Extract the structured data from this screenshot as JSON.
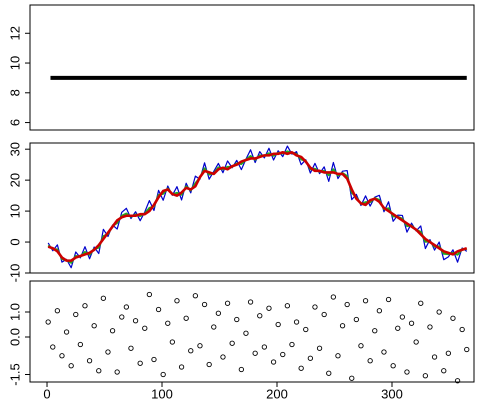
{
  "chart_data": [
    {
      "type": "line",
      "xlim": [
        -14.8,
        371.3
      ],
      "ylim": [
        5.5,
        13.9
      ],
      "yticks": [
        6,
        8,
        10,
        12
      ],
      "x": [
        3,
        365
      ],
      "series": [
        {
          "color": "#000000",
          "values": [
            9,
            9
          ]
        }
      ]
    },
    {
      "type": "line",
      "xlim": [
        -14.8,
        371.3
      ],
      "ylim": [
        -10,
        32
      ],
      "yticks": [
        -10,
        0,
        10,
        20,
        30
      ],
      "x": [
        1,
        5,
        9,
        13,
        17,
        21,
        25,
        29,
        33,
        37,
        41,
        45,
        49,
        53,
        57,
        61,
        65,
        69,
        73,
        77,
        81,
        85,
        89,
        93,
        97,
        101,
        105,
        109,
        113,
        117,
        121,
        125,
        129,
        133,
        137,
        141,
        145,
        149,
        153,
        157,
        161,
        165,
        169,
        173,
        177,
        181,
        185,
        189,
        193,
        197,
        201,
        205,
        209,
        213,
        217,
        221,
        225,
        229,
        233,
        237,
        241,
        245,
        249,
        253,
        257,
        261,
        265,
        269,
        273,
        277,
        281,
        285,
        289,
        293,
        297,
        301,
        305,
        309,
        313,
        317,
        321,
        325,
        329,
        333,
        337,
        341,
        345,
        349,
        353,
        357,
        361,
        365
      ],
      "series": [
        {
          "color": "#0000cc",
          "values": [
            -0.3,
            -2.8,
            -0.9,
            -6.5,
            -5.6,
            -8.3,
            -3.2,
            -5.1,
            -1.5,
            -5.4,
            -1.6,
            -3.7,
            4.1,
            1.8,
            5.5,
            4.2,
            9.6,
            10.9,
            7.6,
            9.8,
            6.9,
            9.7,
            13.4,
            10.2,
            16.7,
            13.5,
            18.1,
            15.1,
            17.9,
            13.6,
            19,
            15.9,
            21.3,
            20.3,
            25.6,
            20.3,
            22.8,
            25.4,
            22.4,
            26.2,
            24,
            26.4,
            23.4,
            26.8,
            29.8,
            25.7,
            29.2,
            27.2,
            30.3,
            26.5,
            29.5,
            27.6,
            31,
            28.4,
            29.2,
            25,
            26.6,
            22.3,
            25.4,
            22.1,
            24.3,
            19.6,
            25.7,
            20.5,
            22.9,
            23.1,
            13.7,
            15.4,
            11.8,
            14.9,
            11.6,
            14.5,
            15.1,
            9.8,
            13,
            6.7,
            8.7,
            8.6,
            3.2,
            6.1,
            3.6,
            5.2,
            -2.1,
            0.8,
            -2.6,
            0,
            -5.7,
            -4.8,
            -2.5,
            -6.5,
            -1.9,
            -3
          ]
        },
        {
          "color": "#22aa22",
          "values": [
            -1.1,
            -2.2,
            -2.4,
            -5.5,
            -5.9,
            -6.7,
            -4.5,
            -4.7,
            -3.2,
            -4.1,
            -2.2,
            -1.8,
            1.9,
            2.6,
            5.2,
            6.2,
            8.5,
            9.2,
            8.2,
            8.9,
            8.4,
            9.2,
            11,
            11.5,
            15.2,
            15.6,
            17.3,
            15.4,
            15.9,
            15.3,
            18,
            16.7,
            19,
            20.8,
            23.8,
            21.8,
            22.2,
            24.1,
            23.5,
            24.3,
            24.3,
            25.4,
            25.2,
            26.6,
            27.8,
            26.6,
            28,
            27.8,
            28.7,
            27.9,
            28.8,
            28.6,
            29.3,
            28.8,
            28.4,
            26.7,
            26.2,
            23.5,
            23.7,
            22.7,
            23,
            21.6,
            23.5,
            21.5,
            22.3,
            21.3,
            16,
            14.4,
            12.3,
            12.9,
            12.9,
            14.2,
            13.6,
            10.6,
            10.9,
            8.3,
            8.2,
            7.5,
            5.2,
            5.3,
            3.9,
            3.3,
            0.1,
            0.2,
            -1.5,
            -1.4,
            -3.8,
            -3.9,
            -3.5,
            -4.1,
            -2.3,
            -2.3
          ]
        },
        {
          "color": "#cc0000",
          "values": [
            -1.5,
            -2,
            -3,
            -5,
            -6,
            -6,
            -5,
            -4.5,
            -4,
            -3.5,
            -2.5,
            -1,
            1,
            3,
            5,
            7,
            8,
            8.5,
            8.5,
            8.5,
            9,
            9,
            10,
            12,
            14.5,
            16.5,
            17,
            15.5,
            15,
            16,
            17.5,
            17,
            18,
            21,
            23,
            22.5,
            22,
            23.5,
            24,
            23.5,
            24.5,
            25,
            26,
            26.5,
            27,
            27,
            27.5,
            28,
            28,
            28.5,
            28.5,
            29,
            28.5,
            29,
            28,
            27.5,
            26,
            24,
            23,
            23,
            22.5,
            22.5,
            22.5,
            22,
            22,
            20.5,
            17,
            14,
            12.5,
            12,
            13.5,
            14,
            13,
            11,
            10,
            9,
            8,
            7,
            6,
            5,
            4,
            2.5,
            1,
            0,
            -1,
            -2,
            -3,
            -3.5,
            -4,
            -3,
            -2.5,
            -2
          ]
        }
      ]
    },
    {
      "type": "scatter",
      "xlim": [
        -14.8,
        371.3
      ],
      "ylim": [
        -1.8,
        2.24
      ],
      "yticks": [
        -1.5,
        {
          "value": 0,
          "label": "0.0"
        },
        {
          "value": 1,
          "label": "1.0"
        }
      ],
      "xticks": [
        0,
        100,
        200,
        300
      ],
      "x": [
        1,
        5,
        9,
        13,
        17,
        21,
        25,
        29,
        33,
        37,
        41,
        45,
        49,
        53,
        57,
        61,
        65,
        69,
        73,
        77,
        81,
        85,
        89,
        93,
        97,
        101,
        105,
        109,
        113,
        117,
        121,
        125,
        129,
        133,
        137,
        141,
        145,
        149,
        153,
        157,
        161,
        165,
        169,
        173,
        177,
        181,
        185,
        189,
        193,
        197,
        201,
        205,
        209,
        213,
        217,
        221,
        225,
        229,
        233,
        237,
        241,
        245,
        249,
        253,
        257,
        261,
        265,
        269,
        273,
        277,
        281,
        285,
        289,
        293,
        297,
        301,
        305,
        309,
        313,
        317,
        321,
        325,
        329,
        333,
        337,
        341,
        345,
        349,
        353,
        357,
        361,
        365
      ],
      "series": [
        {
          "color": "#000000",
          "values": [
            0.6,
            -0.4,
            1.05,
            -0.75,
            0.2,
            -1.15,
            0.9,
            -0.3,
            1.25,
            -0.95,
            0.45,
            -1.35,
            1.55,
            -0.6,
            0.25,
            -1.4,
            0.8,
            1.2,
            -0.45,
            0.65,
            -1.05,
            0.35,
            1.7,
            -0.9,
            1.1,
            -1.5,
            0.55,
            -0.2,
            1.45,
            -1.2,
            0.75,
            -0.55,
            1.65,
            -0.35,
            1.3,
            -1.1,
            0.4,
            0.95,
            -0.8,
            1.35,
            -0.25,
            0.7,
            -1.3,
            0.15,
            1.4,
            -0.65,
            0.85,
            -0.4,
            1.15,
            -1,
            0.5,
            -0.7,
            1.25,
            -0.3,
            0.6,
            -1.25,
            0.3,
            -0.85,
            1.2,
            -0.45,
            0.9,
            -1.45,
            1.6,
            -0.75,
            0.45,
            1.3,
            -1.65,
            0.7,
            -0.35,
            1.45,
            -0.95,
            0.25,
            1.05,
            -0.6,
            1.5,
            -1.15,
            0.35,
            0.8,
            -1.4,
            0.55,
            -0.2,
            1.35,
            -1.55,
            0.4,
            -0.8,
            1,
            -1.35,
            -0.65,
            0.75,
            -1.75,
            0.3,
            -0.5
          ]
        }
      ]
    }
  ]
}
